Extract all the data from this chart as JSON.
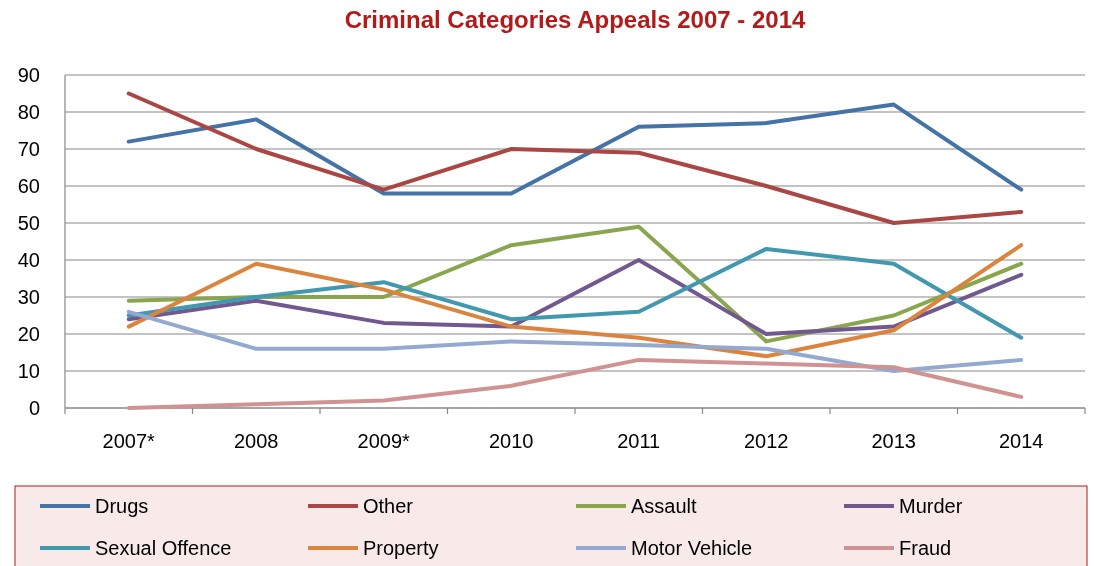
{
  "chart_data": {
    "type": "line",
    "title": "Criminal Categories Appeals 2007 - 2014",
    "categories": [
      "2007*",
      "2008",
      "2009*",
      "2010",
      "2011",
      "2012",
      "2013",
      "2014"
    ],
    "ylim": [
      0,
      90
    ],
    "yticks": [
      0,
      10,
      20,
      30,
      40,
      50,
      60,
      70,
      80,
      90
    ],
    "grid": "y",
    "legend": "bottom",
    "marker": "none",
    "line_style": "solid",
    "series": [
      {
        "name": "Drugs",
        "color": "#4572a7",
        "values": [
          72,
          78,
          58,
          58,
          76,
          77,
          82,
          59
        ]
      },
      {
        "name": "Other",
        "color": "#aa4643",
        "values": [
          85,
          70,
          59,
          70,
          69,
          60,
          50,
          53
        ]
      },
      {
        "name": "Assault",
        "color": "#89a54e",
        "values": [
          29,
          30,
          30,
          44,
          49,
          18,
          25,
          39
        ]
      },
      {
        "name": "Murder",
        "color": "#71588f",
        "values": [
          24,
          29,
          23,
          22,
          40,
          20,
          22,
          36
        ]
      },
      {
        "name": "Sexual Offence",
        "color": "#4198af",
        "values": [
          25,
          30,
          34,
          24,
          26,
          43,
          39,
          19
        ]
      },
      {
        "name": "Property",
        "color": "#db843d",
        "values": [
          22,
          39,
          32,
          22,
          19,
          14,
          21,
          44
        ]
      },
      {
        "name": "Motor Vehicle",
        "color": "#93a9cf",
        "values": [
          26,
          16,
          16,
          18,
          17,
          16,
          10,
          13
        ]
      },
      {
        "name": "Fraud",
        "color": "#d19392",
        "values": [
          0,
          1,
          2,
          6,
          13,
          12,
          11,
          3
        ]
      }
    ]
  }
}
